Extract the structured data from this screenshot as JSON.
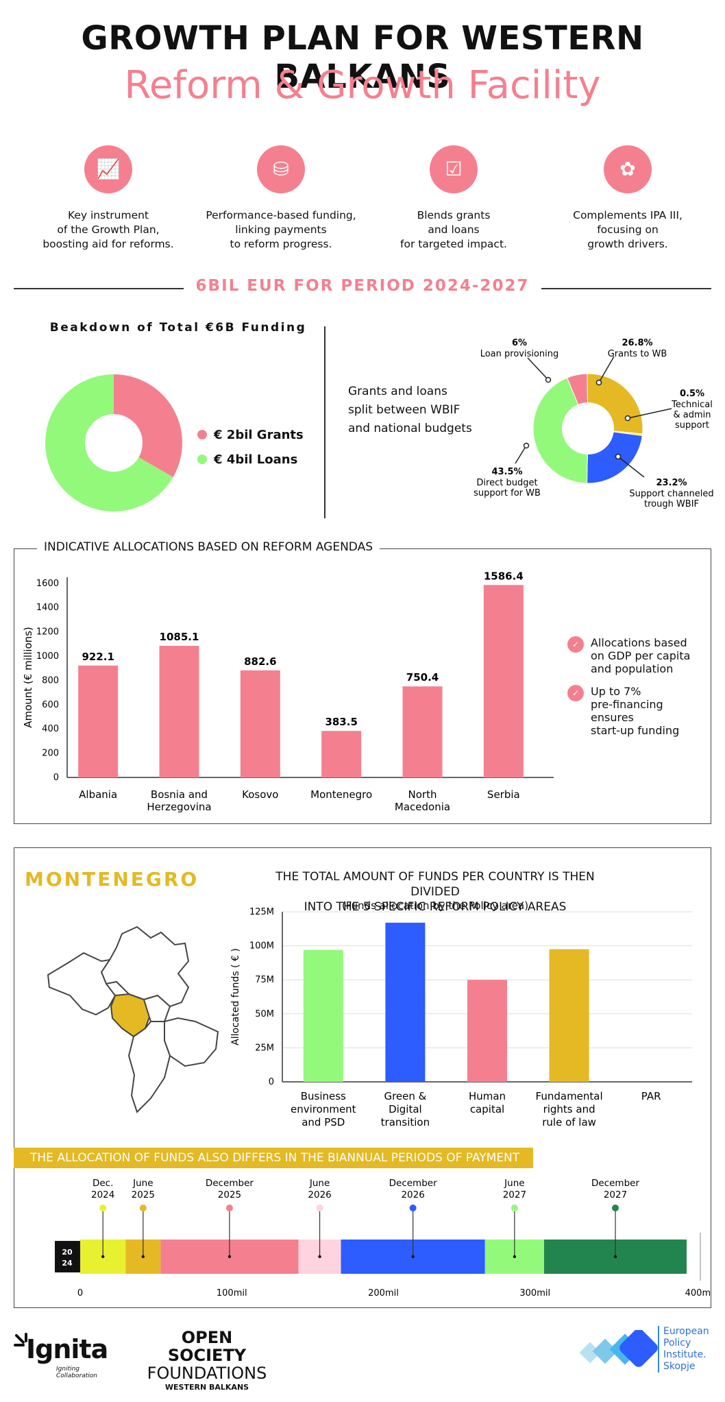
{
  "header": {
    "title": "GROWTH PLAN FOR WESTERN BALKANS",
    "subtitle": "Reform & Growth Facility"
  },
  "features": [
    {
      "icon": "chart-icon",
      "text": "Key instrument\nof the Growth Plan,\nboosting aid for reforms."
    },
    {
      "icon": "money-hand-icon",
      "text": "Performance-based funding,\nlinking payments\nto reform progress."
    },
    {
      "icon": "checklist-icon",
      "text": "Blends grants\nand loans\nfor targeted impact."
    },
    {
      "icon": "sprout-icon",
      "text": "Complements IPA III,\nfocusing on\ngrowth drivers."
    }
  ],
  "period_label": "6BIL EUR FOR PERIOD 2024-2027",
  "colors": {
    "pink": "#f4808f",
    "green": "#93f97a",
    "yellow": "#e4b923",
    "blue": "#2d5cff",
    "darkgreen": "#22854f",
    "lime": "#e8f12f",
    "lightpink": "#ffd3df"
  },
  "breakdown": {
    "title": "Beakdown of Total €6B Funding",
    "legend": [
      "€ 2bil Grants",
      "€ 4bil Loans"
    ],
    "split_text": "Grants and loans\nsplit between WBIF\nand national budgets"
  },
  "allocations_box": {
    "title": "INDICATIVE ALLOCATIONS BASED ON REFORM AGENDAS",
    "notes": [
      "Allocations based\non GDP per capita\nand population",
      "Up to 7%\npre-financing\nensures\nstart-up funding"
    ]
  },
  "montenegro": {
    "title": "MONTENEGRO",
    "chart_title": "THE TOTAL AMOUNT OF FUNDS PER COUNTRY IS THEN DIVIDED\nINTO THE 5 SPECIFIC REFORM POLICY AREAS",
    "chart_subtitle": "(Funds allocation by the Policy area)"
  },
  "payments": {
    "band": "THE ALLOCATION OF FUNDS ALSO DIFFERS IN THE BIANNUAL PERIODS OF PAYMENT",
    "year_badge": "2024"
  },
  "footer": {
    "ignita": "Ignita",
    "ignita_tag": "Igniting Collaboration",
    "osf1": "OPEN SOCIETY",
    "osf2": "FOUNDATIONS",
    "osf3": "WESTERN BALKANS",
    "epi": "European\nPolicy\nInstitute.\nSkopje"
  },
  "chart_data": [
    {
      "type": "pie",
      "title": "Beakdown of Total €6B Funding",
      "categories": [
        "€ 2bil Grants",
        "€ 4bil Loans"
      ],
      "values": [
        2,
        4
      ],
      "colors": [
        "#f4808f",
        "#93f97a"
      ]
    },
    {
      "type": "pie",
      "title": "Grants and loans split between WBIF and national budgets",
      "slices": [
        {
          "pct": "6%",
          "label": "Loan provisioning",
          "value": 6,
          "color": "#f4808f"
        },
        {
          "pct": "26.8%",
          "label": "Grants to WB",
          "value": 26.8,
          "color": "#e4b923"
        },
        {
          "pct": "0.5%",
          "label": "Technical\n& admin\nsupport",
          "value": 0.5,
          "color": "#e8f12f"
        },
        {
          "pct": "23.2%",
          "label": "Support channeled\ntrough WBIF",
          "value": 23.2,
          "color": "#2d5cff"
        },
        {
          "pct": "43.5%",
          "label": "Direct budget\nsupport for WB",
          "value": 43.5,
          "color": "#93f97a"
        }
      ]
    },
    {
      "type": "bar",
      "title": "INDICATIVE ALLOCATIONS BASED ON REFORM AGENDAS",
      "categories": [
        "Albania",
        "Bosnia and\nHerzegovina",
        "Kosovo",
        "Montenegro",
        "North\nMacedonia",
        "Serbia"
      ],
      "values": [
        922.1,
        1085.1,
        882.6,
        383.5,
        750.4,
        1586.4
      ],
      "value_labels": [
        "922.1",
        "1085.1",
        "882.6",
        "383.5",
        "750.4",
        "1586.4"
      ],
      "ylabel": "Amount (€ millions)",
      "yticks": [
        "0",
        "200",
        "400",
        "600",
        "800",
        "1000",
        "1200",
        "1400",
        "1600"
      ],
      "ylim": [
        0,
        1650
      ],
      "color": "#f4808f"
    },
    {
      "type": "bar",
      "title": "THE TOTAL AMOUNT OF FUNDS PER COUNTRY IS THEN DIVIDED INTO THE 5 SPECIFIC REFORM POLICY AREAS",
      "categories": [
        "Business\nenvironment\nand PSD",
        "Green &\nDigital\ntransition",
        "Human\ncapital",
        "Fundamental\nrights and\nrule of law",
        "PAR"
      ],
      "values": [
        97,
        117,
        75,
        97.5,
        0
      ],
      "colors": [
        "#93f97a",
        "#2d5cff",
        "#f4808f",
        "#e4b923",
        "#ffffff"
      ],
      "ylabel": "Allocated funds ( € )",
      "yticks": [
        "0",
        "25M",
        "50M",
        "75M",
        "100M",
        "125M"
      ],
      "ylim": [
        0,
        125
      ],
      "grid": true
    },
    {
      "type": "bar",
      "title": "THE ALLOCATION OF FUNDS ALSO DIFFERS IN THE BIANNUAL PERIODS OF PAYMENT",
      "xticks": [
        "0",
        "100mil",
        "200mil",
        "300mil",
        "400mil"
      ],
      "xlim": [
        0,
        400
      ],
      "segments": [
        {
          "label": "Dec.\n2024",
          "start": 0,
          "end": 30,
          "color": "#e8f12f"
        },
        {
          "label": "June\n2025",
          "start": 30,
          "end": 53,
          "color": "#e4b923"
        },
        {
          "label": "December\n2025",
          "start": 53,
          "end": 144,
          "color": "#f4808f"
        },
        {
          "label": "June\n2026",
          "start": 144,
          "end": 172,
          "color": "#ffd3df"
        },
        {
          "label": "December\n2026",
          "start": 172,
          "end": 267,
          "color": "#2d5cff"
        },
        {
          "label": "June\n2027",
          "start": 267,
          "end": 306,
          "color": "#93f97a"
        },
        {
          "label": "December\n2027",
          "start": 306,
          "end": 400,
          "color": "#22854f"
        }
      ]
    }
  ]
}
